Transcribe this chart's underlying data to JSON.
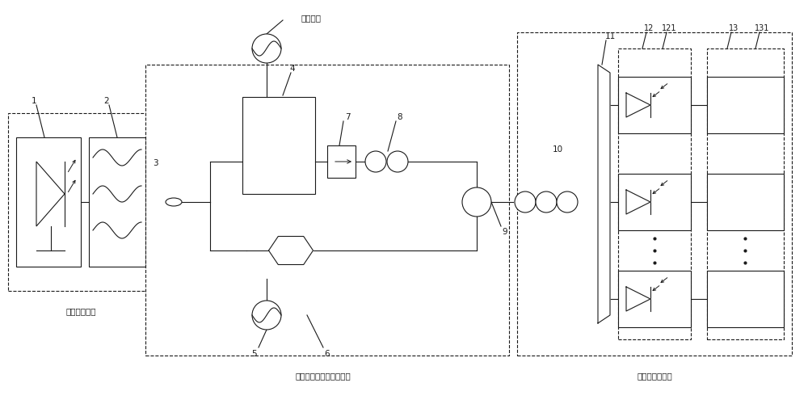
{
  "bg_color": "#ffffff",
  "line_color": "#1a1a1a",
  "module1_label": "光梳产生模块",
  "module2_label": "信号调制及光梳相移模块",
  "module3_label": "色散及波分模块",
  "signal_label": "待测信号",
  "figsize": [
    10.0,
    5.0
  ],
  "dpi": 100
}
